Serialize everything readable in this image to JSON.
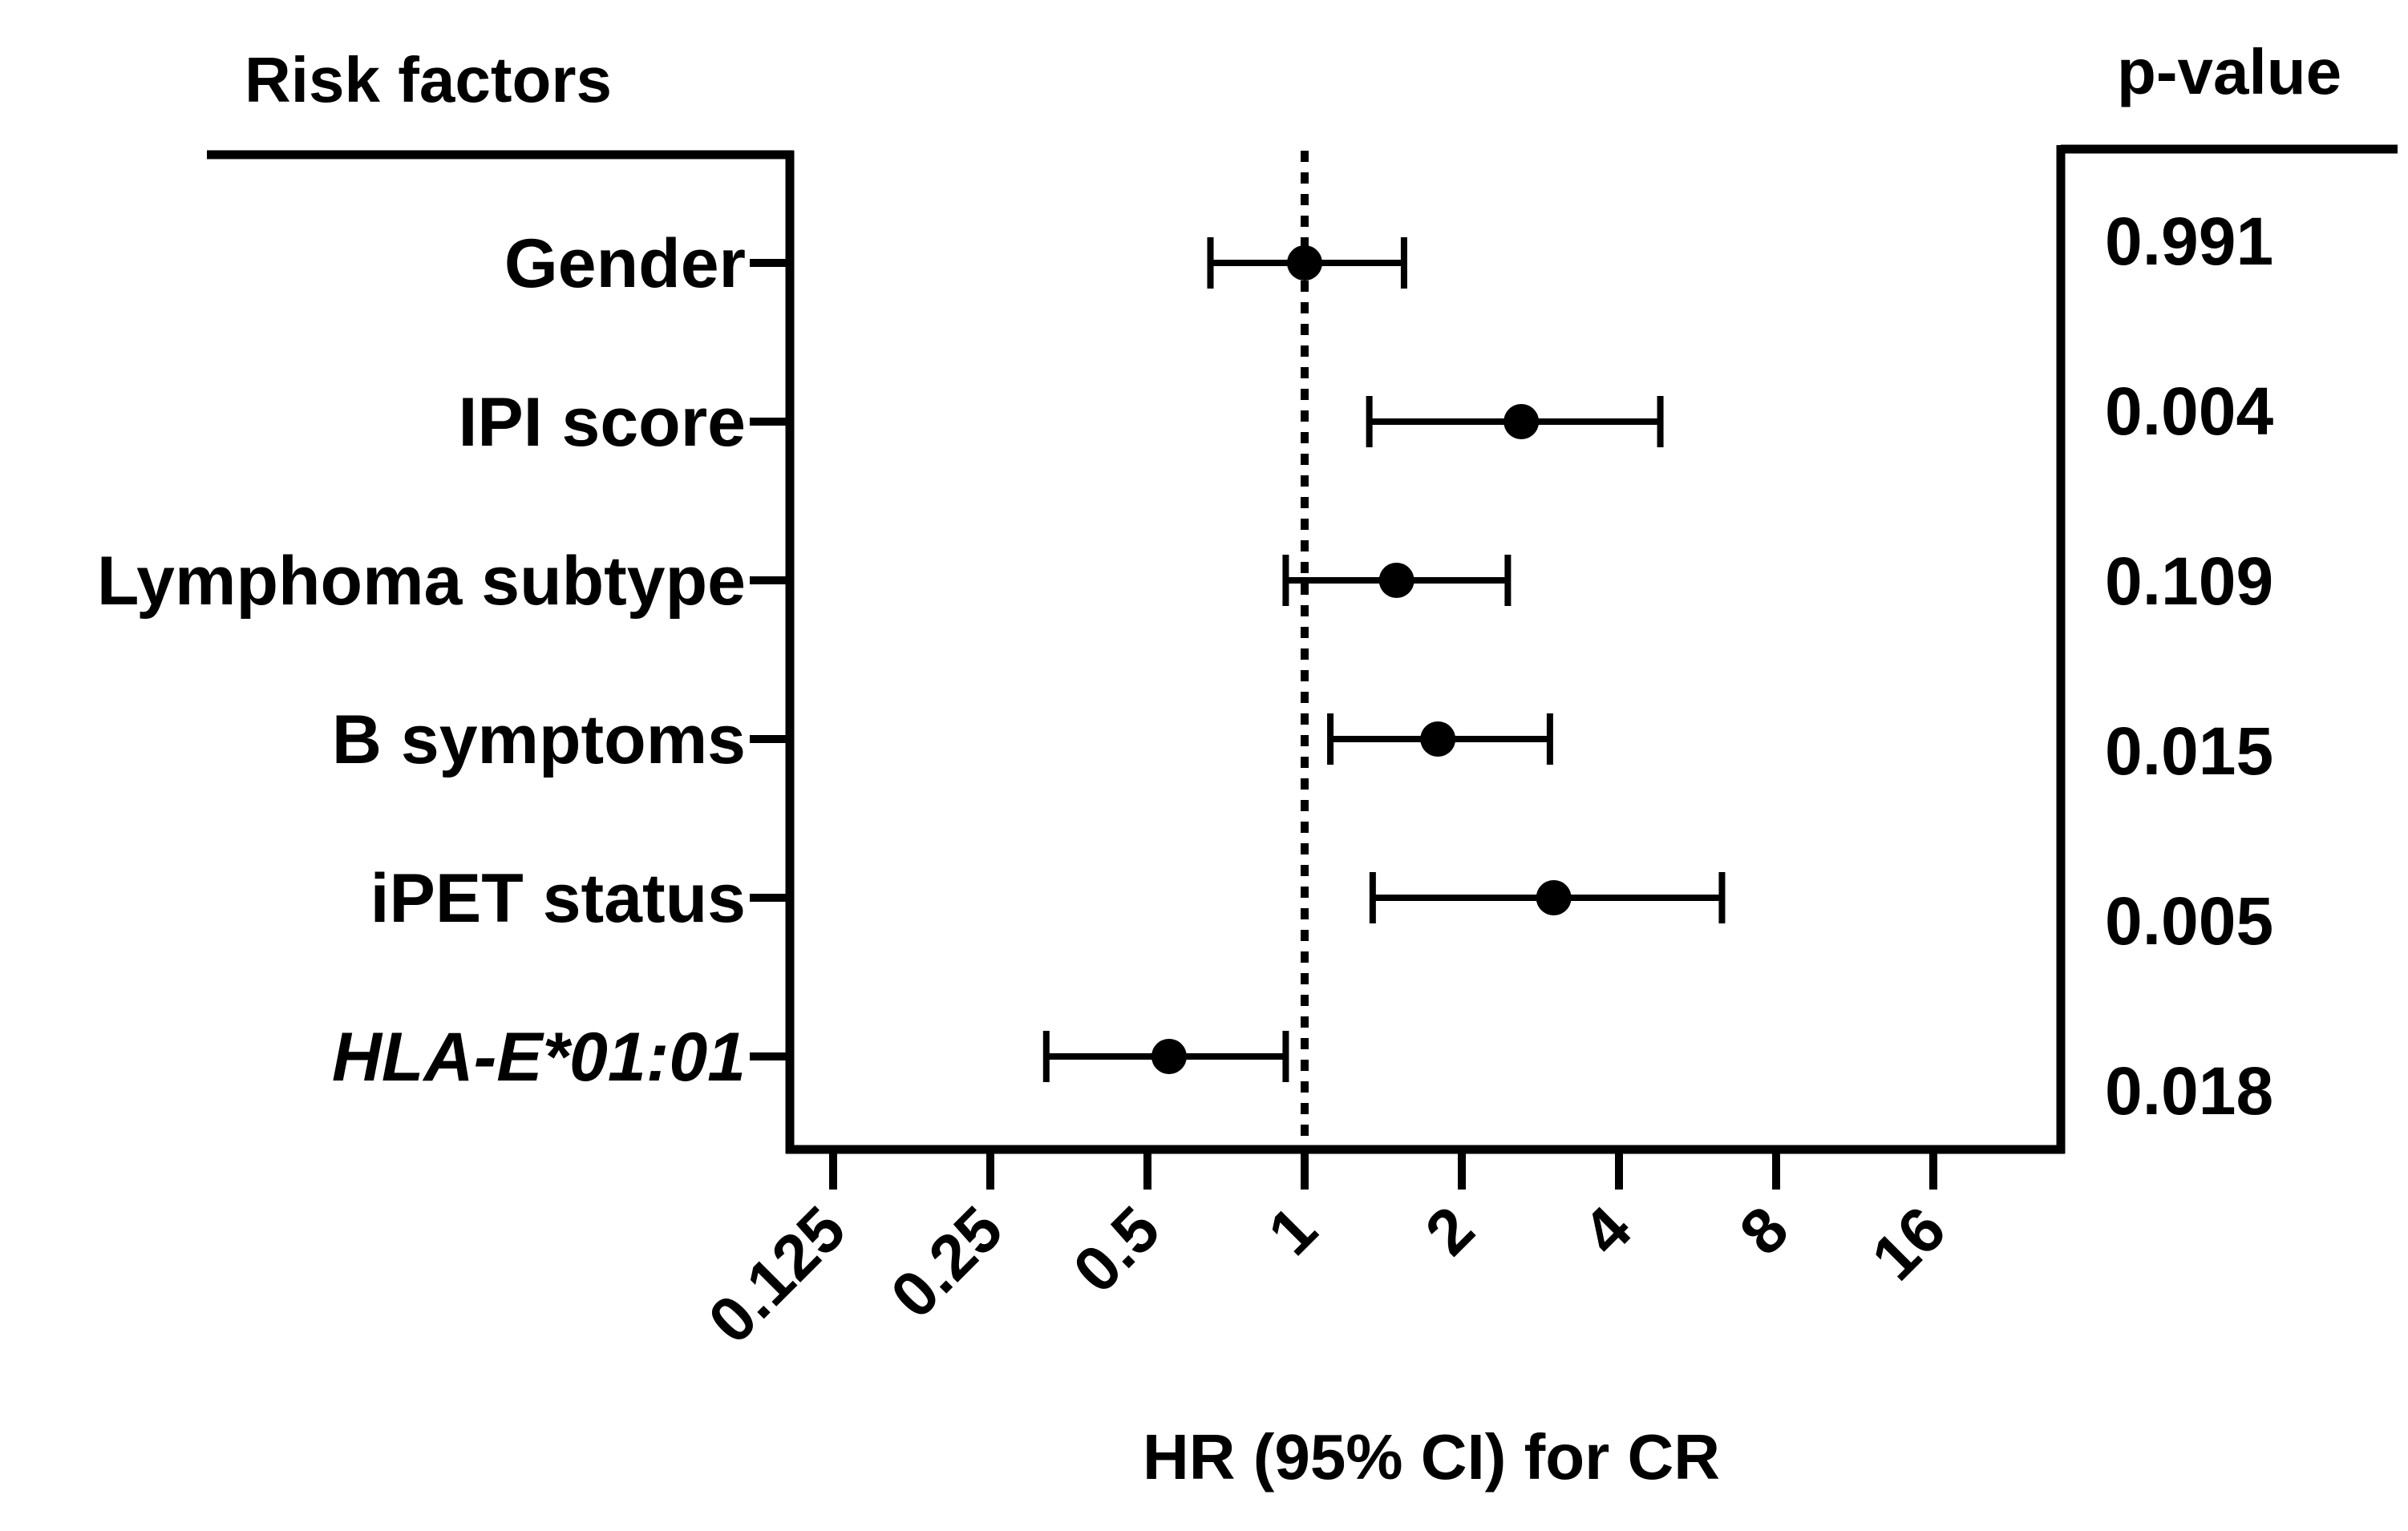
{
  "chart_data": {
    "type": "forest",
    "left_header": "Risk factors",
    "right_header": "p-value",
    "xlabel": "HR (95% CI) for CR",
    "x_scale": "log2",
    "xlim": [
      0.09,
      32
    ],
    "x_ticks": [
      {
        "value": 0.125,
        "label": "0.125"
      },
      {
        "value": 0.25,
        "label": "0.25"
      },
      {
        "value": 0.5,
        "label": "0.5"
      },
      {
        "value": 1,
        "label": "1"
      },
      {
        "value": 2,
        "label": "2"
      },
      {
        "value": 4,
        "label": "4"
      },
      {
        "value": 8,
        "label": "8"
      },
      {
        "value": 16,
        "label": "16"
      }
    ],
    "reference_line": 1,
    "rows": [
      {
        "label": "Gender",
        "italic": false,
        "hr": 1.0,
        "ci_low": 0.66,
        "ci_high": 1.55,
        "p_value": "0.991"
      },
      {
        "label": "IPI score",
        "italic": false,
        "hr": 2.6,
        "ci_low": 1.33,
        "ci_high": 4.8,
        "p_value": "0.004"
      },
      {
        "label": "Lymphoma subtype",
        "italic": false,
        "hr": 1.5,
        "ci_low": 0.92,
        "ci_high": 2.45,
        "p_value": "0.109"
      },
      {
        "label": "B symptoms",
        "italic": false,
        "hr": 1.8,
        "ci_low": 1.12,
        "ci_high": 2.95,
        "p_value": "0.015"
      },
      {
        "label": "iPET status",
        "italic": false,
        "hr": 3.0,
        "ci_low": 1.35,
        "ci_high": 6.3,
        "p_value": "0.005"
      },
      {
        "label": "HLA-E*01:01",
        "italic": true,
        "hr": 0.55,
        "ci_low": 0.32,
        "ci_high": 0.92,
        "p_value": "0.018"
      }
    ],
    "colors": {
      "marks": "#000000",
      "background": "#ffffff"
    }
  }
}
